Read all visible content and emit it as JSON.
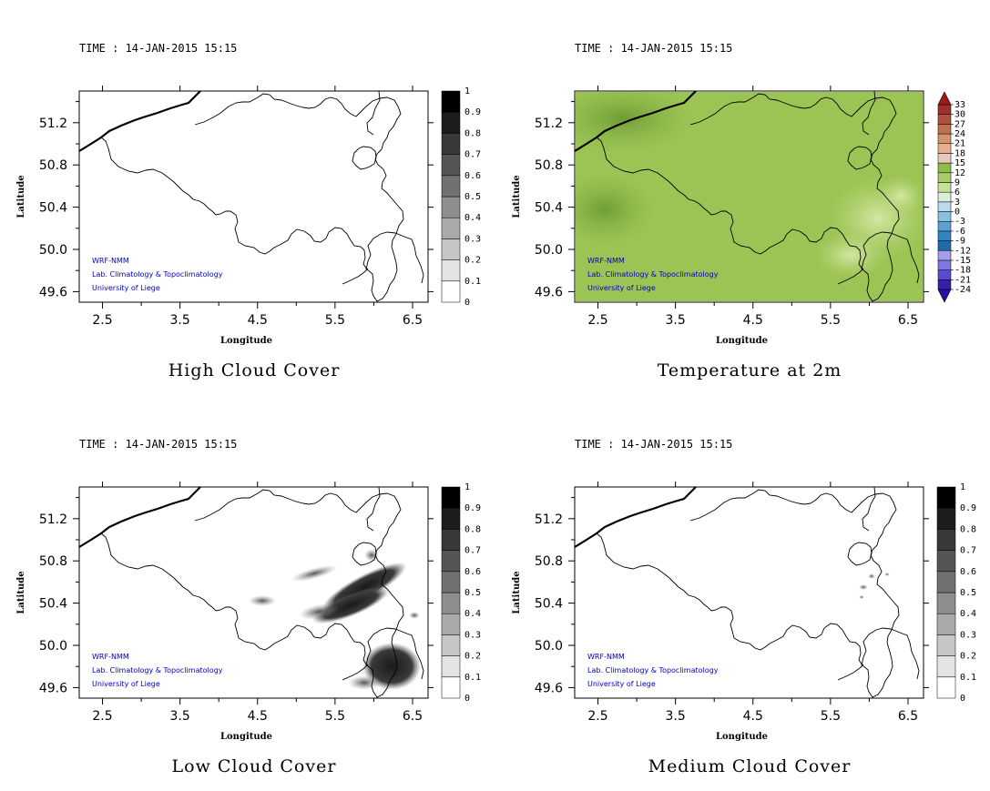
{
  "panels": [
    {
      "id": "high",
      "time_label": "TIME : 14-JAN-2015 15:15",
      "title": "High Cloud Cover",
      "xlabel": "Longitude",
      "ylabel": "Latitude",
      "x_ticks": [
        "2.5",
        "3.5",
        "4.5",
        "5.5",
        "6.5"
      ],
      "y_ticks": [
        "51.2",
        "50.8",
        "50.4",
        "50.0",
        "49.6"
      ],
      "credits": [
        "WRF-NMM",
        "Lab. Climatology & Topoclimatology",
        "University of Liege"
      ],
      "colorbar_labels": [
        "1",
        "0.9",
        "0.8",
        "0.7",
        "0.6",
        "0.5",
        "0.4",
        "0.3",
        "0.2",
        "0.1",
        "0"
      ]
    },
    {
      "id": "temp",
      "time_label": "TIME : 14-JAN-2015 15:15",
      "title": "Temperature at 2m",
      "xlabel": "Longitude",
      "ylabel": "Latitude",
      "x_ticks": [
        "2.5",
        "3.5",
        "4.5",
        "5.5",
        "6.5"
      ],
      "y_ticks": [
        "51.2",
        "50.8",
        "50.4",
        "50.0",
        "49.6"
      ],
      "credits": [
        "WRF-NMM",
        "Lab. Climatology & Topoclimatology",
        "University of Liege"
      ],
      "colorbar_labels": [
        "33",
        "30",
        "27",
        "24",
        "21",
        "18",
        "15",
        "12",
        "9",
        "6",
        "3",
        "0",
        "-3",
        "-6",
        "-9",
        "-12",
        "-15",
        "-18",
        "-21",
        "-24"
      ]
    },
    {
      "id": "low",
      "time_label": "TIME : 14-JAN-2015 15:15",
      "title": "Low Cloud Cover",
      "xlabel": "Longitude",
      "ylabel": "Latitude",
      "x_ticks": [
        "2.5",
        "3.5",
        "4.5",
        "5.5",
        "6.5"
      ],
      "y_ticks": [
        "51.2",
        "50.8",
        "50.4",
        "50.0",
        "49.6"
      ],
      "credits": [
        "WRF-NMM",
        "Lab. Climatology & Topoclimatology",
        "University of Liege"
      ],
      "colorbar_labels": [
        "1",
        "0.9",
        "0.8",
        "0.7",
        "0.6",
        "0.5",
        "0.4",
        "0.3",
        "0.2",
        "0.1",
        "0"
      ]
    },
    {
      "id": "medium",
      "time_label": "TIME : 14-JAN-2015 15:15",
      "title": "Medium Cloud Cover",
      "xlabel": "Longitude",
      "ylabel": "Latitude",
      "x_ticks": [
        "2.5",
        "3.5",
        "4.5",
        "5.5",
        "6.5"
      ],
      "y_ticks": [
        "51.2",
        "50.8",
        "50.4",
        "50.0",
        "49.6"
      ],
      "credits": [
        "WRF-NMM",
        "Lab. Climatology & Topoclimatology",
        "University of Liege"
      ],
      "colorbar_labels": [
        "1",
        "0.9",
        "0.8",
        "0.7",
        "0.6",
        "0.5",
        "0.4",
        "0.3",
        "0.2",
        "0.1",
        "0"
      ]
    }
  ],
  "colors": {
    "credits_text": "#0000c8",
    "coast": "#000000",
    "temp_field": "#9cc454"
  },
  "chart_data": [
    {
      "type": "heatmap",
      "title": "High Cloud Cover",
      "xlabel": "Longitude",
      "ylabel": "Latitude",
      "xlim": [
        2.2,
        6.7
      ],
      "ylim": [
        49.5,
        51.5
      ],
      "colorbar": {
        "min": 0,
        "max": 1,
        "step": 0.1
      },
      "field_summary": "no high cloud over the domain (all values 0)"
    },
    {
      "type": "heatmap",
      "title": "Temperature at 2m",
      "xlabel": "Longitude",
      "ylabel": "Latitude",
      "xlim": [
        2.2,
        6.7
      ],
      "ylim": [
        49.5,
        51.5
      ],
      "colorbar": {
        "min": -24,
        "max": 33,
        "step": 3
      },
      "field_summary": "temperatures between about 3 and 9 over the domain"
    },
    {
      "type": "heatmap",
      "title": "Low Cloud Cover",
      "xlabel": "Longitude",
      "ylabel": "Latitude",
      "xlim": [
        2.2,
        6.7
      ],
      "ylim": [
        49.5,
        51.5
      ],
      "colorbar": {
        "min": 0,
        "max": 1,
        "step": 0.1
      },
      "field_summary": "cloud band from about 4 to 6.5 longitude, 50.2 to 50.8 latitude, and a dense area near 6-6.5 longitude, 49.6-50.0 latitude"
    },
    {
      "type": "heatmap",
      "title": "Medium Cloud Cover",
      "xlabel": "Longitude",
      "ylabel": "Latitude",
      "xlim": [
        2.2,
        6.7
      ],
      "ylim": [
        49.5,
        51.5
      ],
      "colorbar": {
        "min": 0,
        "max": 1,
        "step": 0.1
      },
      "field_summary": "a few small patches near 6.0 longitude, 50.5-50.7 latitude"
    }
  ]
}
